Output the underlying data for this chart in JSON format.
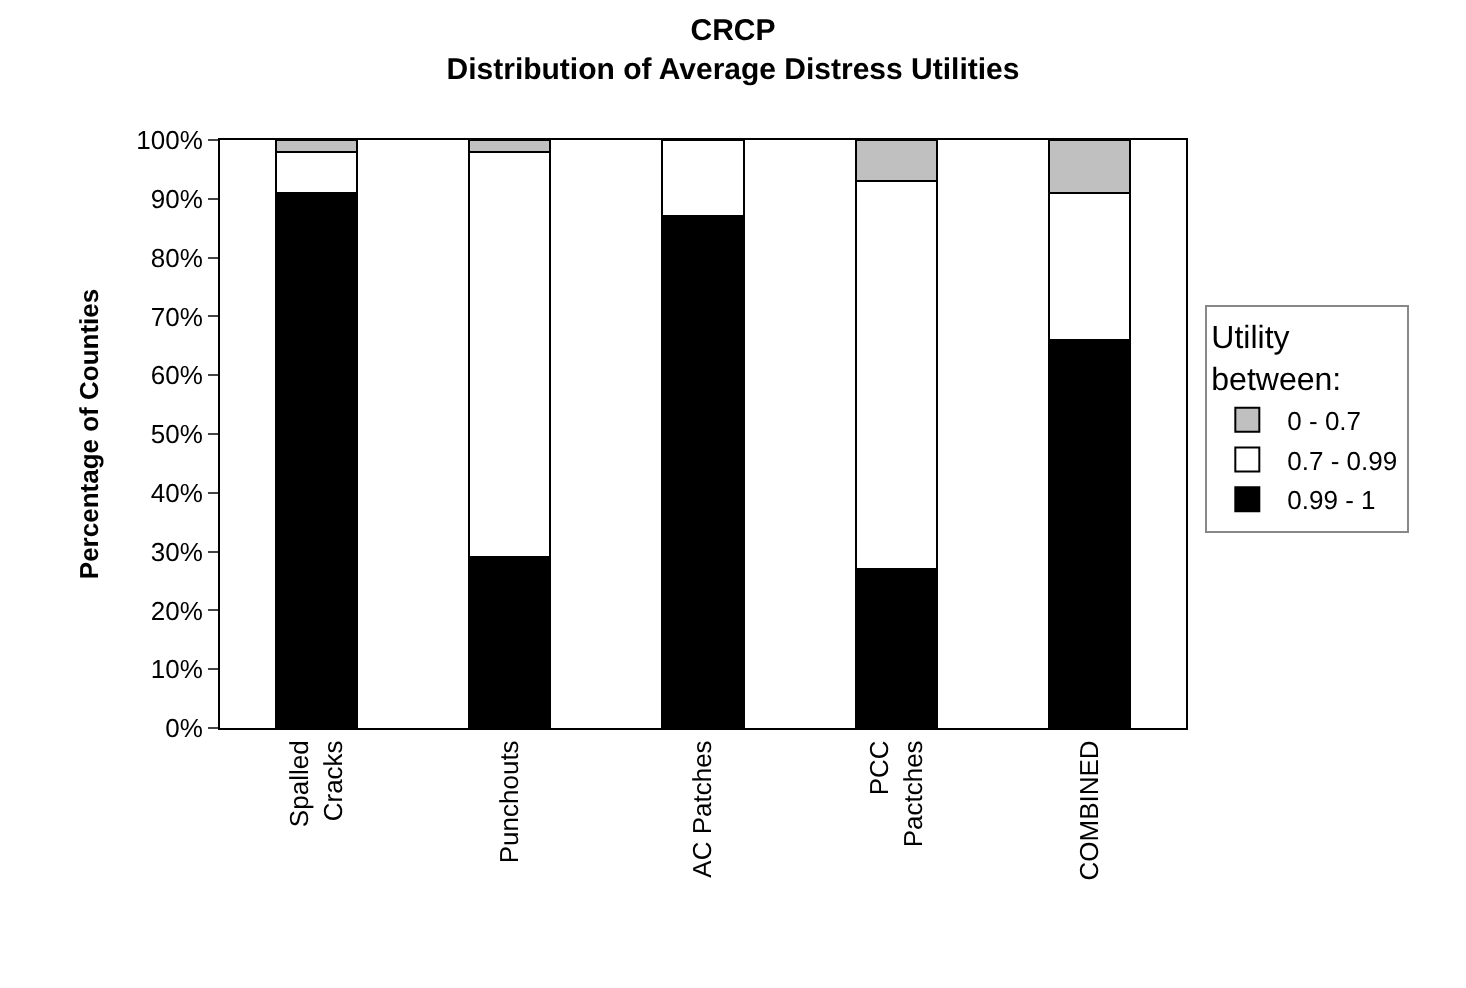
{
  "chart_data": {
    "type": "bar",
    "title": "CRCP",
    "subtitle": "Distribution of Average Distress Utilities",
    "ylabel": "Percentage of Counties",
    "legend_title": "Utility\nbetween:",
    "categories": [
      "Spalled\nCracks",
      "Punchouts",
      "AC Patches",
      "PCC\nPactches",
      "COMBINED"
    ],
    "stacked": true,
    "legend": "right",
    "ylim": [
      0,
      100
    ],
    "yticks": [
      {
        "value": 0,
        "label": "0%"
      },
      {
        "value": 10,
        "label": "10%"
      },
      {
        "value": 20,
        "label": "20%"
      },
      {
        "value": 30,
        "label": "30%"
      },
      {
        "value": 40,
        "label": "40%"
      },
      {
        "value": 50,
        "label": "50%"
      },
      {
        "value": 60,
        "label": "60%"
      },
      {
        "value": 70,
        "label": "70%"
      },
      {
        "value": 80,
        "label": "80%"
      },
      {
        "value": 90,
        "label": "90%"
      },
      {
        "value": 100,
        "label": "100%"
      }
    ],
    "series": [
      {
        "name": "0.99 - 1",
        "color": "#000000",
        "values": [
          91,
          29,
          87,
          27,
          66
        ]
      },
      {
        "name": "0.7 - 0.99",
        "color": "#ffffff",
        "values": [
          7,
          69,
          13,
          66,
          25
        ]
      },
      {
        "name": "0 - 0.7",
        "color": "#c0c0c0",
        "values": [
          2,
          2,
          0,
          7,
          9
        ]
      }
    ]
  }
}
